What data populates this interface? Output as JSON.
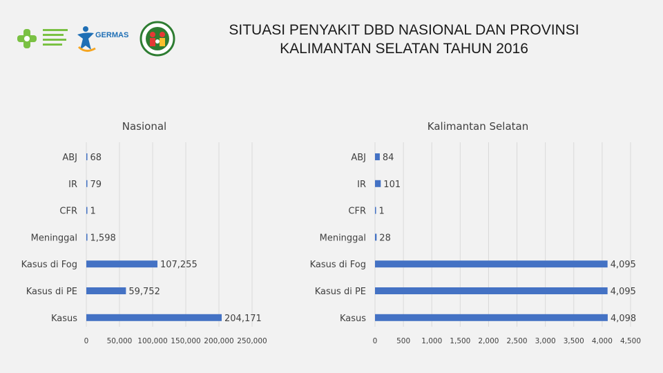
{
  "header": {
    "title_line1": "SITUASI PENYAKIT DBD NASIONAL DAN PROVINSI",
    "title_line2": "KALIMANTAN SELATAN TAHUN 2016",
    "logo_text": "GERMAS"
  },
  "colors": {
    "bar": "#4472c4",
    "grid": "#d9d9d9",
    "text": "#404040"
  },
  "chart_data": [
    {
      "type": "bar",
      "orientation": "horizontal",
      "title": "Nasional",
      "categories": [
        "ABJ",
        "IR",
        "CFR",
        "Meninggal",
        "Kasus di Fog",
        "Kasus di PE",
        "Kasus"
      ],
      "values": [
        68,
        79,
        1,
        1598,
        107255,
        59752,
        204171
      ],
      "value_labels": [
        "68",
        "79",
        "1",
        "1,598",
        "107,255",
        "59,752",
        "204,171"
      ],
      "xlim": [
        0,
        250000
      ],
      "xticks": [
        0,
        50000,
        100000,
        150000,
        200000,
        250000
      ],
      "xtick_labels": [
        "0",
        "50,000",
        "100,000",
        "150,000",
        "200,000",
        "250,000"
      ],
      "grid": true
    },
    {
      "type": "bar",
      "orientation": "horizontal",
      "title": "Kalimantan Selatan",
      "categories": [
        "ABJ",
        "IR",
        "CFR",
        "Meninggal",
        "Kasus di Fog",
        "Kasus di PE",
        "Kasus"
      ],
      "values": [
        84,
        101,
        1,
        28,
        4095,
        4095,
        4098
      ],
      "value_labels": [
        "84",
        "101",
        "1",
        "28",
        "4,095",
        "4,095",
        "4,098"
      ],
      "xlim": [
        0,
        4500
      ],
      "xticks": [
        0,
        500,
        1000,
        1500,
        2000,
        2500,
        3000,
        3500,
        4000,
        4500
      ],
      "xtick_labels": [
        "0",
        "500",
        "1,000",
        "1,500",
        "2,000",
        "2,500",
        "3,000",
        "3,500",
        "4,000",
        "4,500"
      ],
      "grid": true
    }
  ]
}
